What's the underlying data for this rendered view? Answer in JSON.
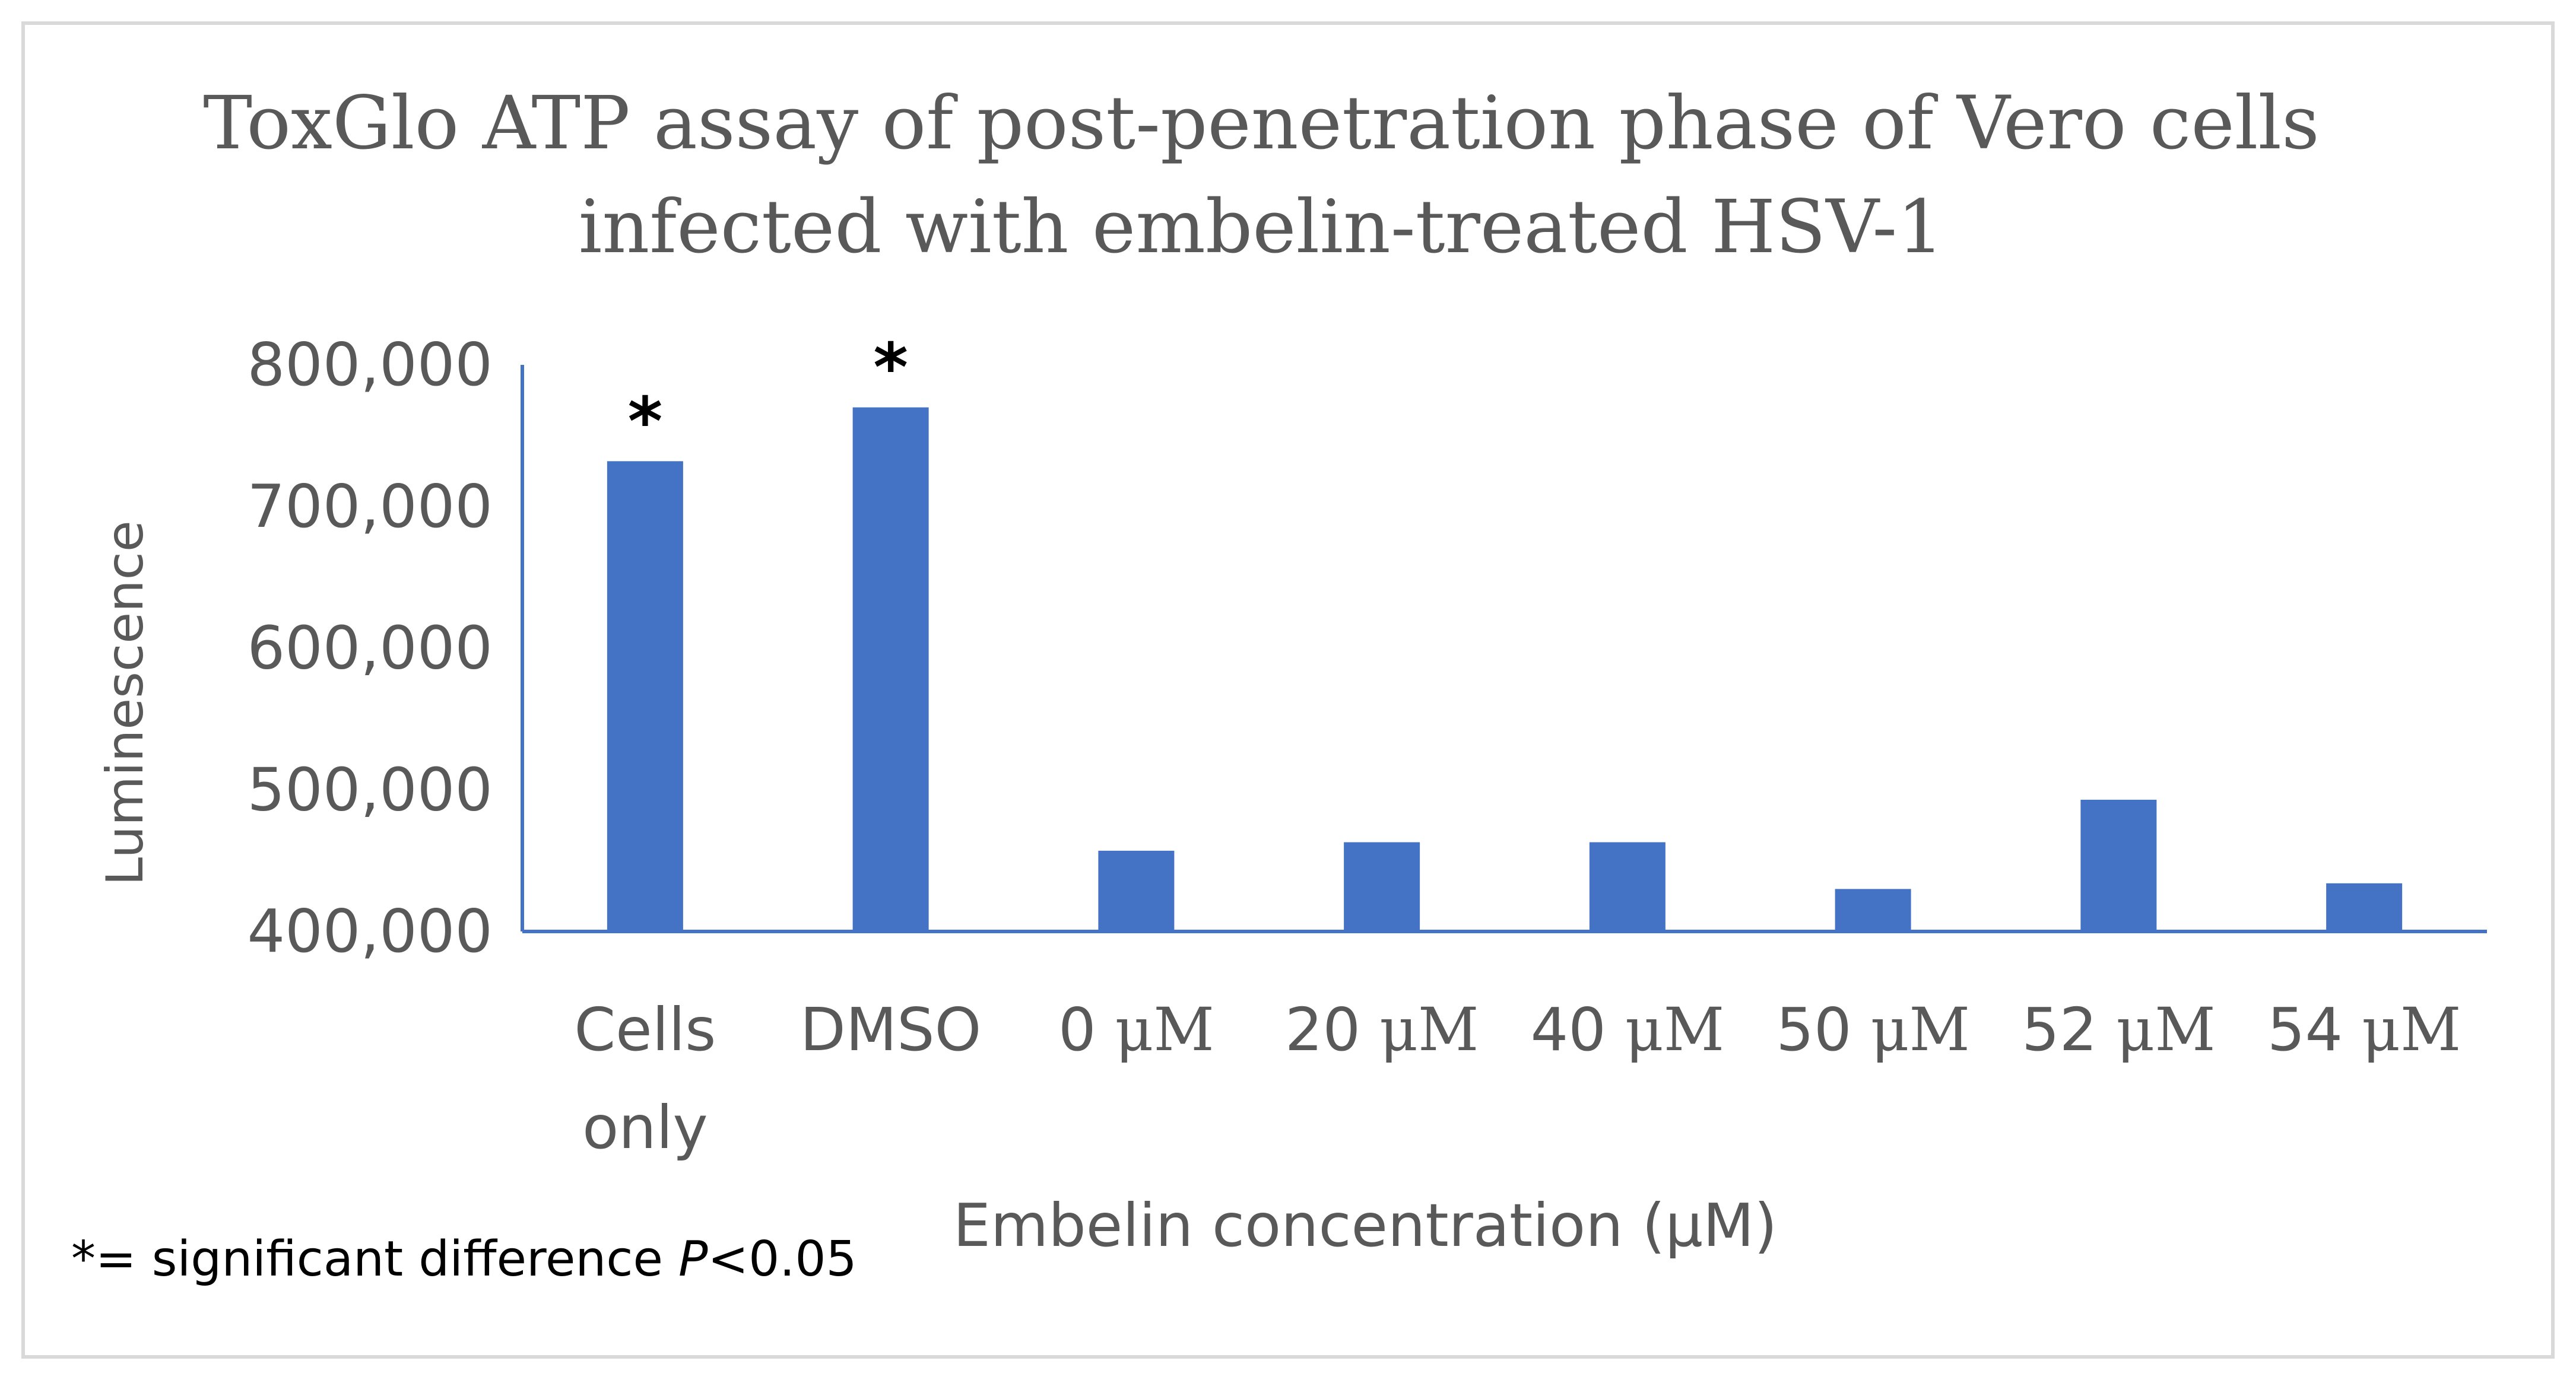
{
  "chart_data": {
    "type": "bar",
    "title_lines": [
      "ToxGlo ATP assay of post-penetration phase of Vero cells",
      "infected with embelin-treated HSV-1"
    ],
    "categories": [
      [
        "Cells",
        "only"
      ],
      [
        "DMSO"
      ],
      [
        "0 ",
        "μM"
      ],
      [
        "20 ",
        "μM"
      ],
      [
        "40 ",
        "μM"
      ],
      [
        "50 ",
        "μM"
      ],
      [
        "52 ",
        "μM"
      ],
      [
        "54 ",
        "μM"
      ]
    ],
    "values": [
      732000,
      770000,
      457000,
      463000,
      463000,
      430000,
      493000,
      434000
    ],
    "significance": [
      "*",
      "*",
      "",
      "",
      "",
      "",
      "",
      ""
    ],
    "ylim": [
      400000,
      800000
    ],
    "y_ticks": [
      400000,
      500000,
      600000,
      700000,
      800000
    ],
    "y_tick_labels": [
      "400,000",
      "500,000",
      "600,000",
      "700,000",
      "800,000"
    ],
    "ylabel": "Luminescence",
    "xlabel": "Embelin concentration (μM)",
    "bar_color": "#4472c4",
    "axis_color": "#4472c4",
    "footnote": {
      "prefix": "*= significant difference ",
      "italic": "P",
      "suffix": "<0.05"
    }
  }
}
